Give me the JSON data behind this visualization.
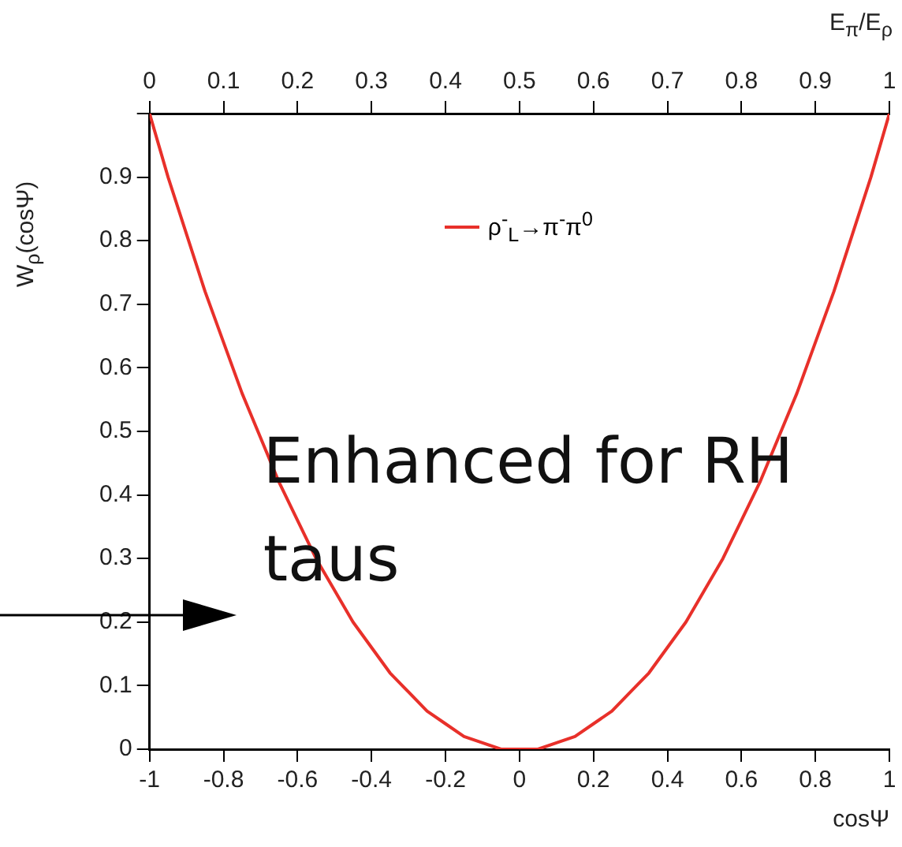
{
  "chart_data": {
    "type": "line",
    "xlabel": "cosΨ",
    "ylabel": "W$_{ρ}$(cosΨ)",
    "x2label": "E$_{π}$/E$_{ρ}$",
    "x": [
      -1,
      -0.95,
      -0.9,
      -0.85,
      -0.8,
      -0.75,
      -0.7,
      -0.65,
      -0.6,
      -0.55,
      -0.5,
      -0.45,
      -0.4,
      -0.35,
      -0.3,
      -0.25,
      -0.2,
      -0.15,
      -0.1,
      -0.05,
      0,
      0.05,
      0.1,
      0.15,
      0.2,
      0.25,
      0.3,
      0.35,
      0.4,
      0.45,
      0.5,
      0.55,
      0.6,
      0.65,
      0.7,
      0.75,
      0.8,
      0.85,
      0.9,
      0.95,
      1
    ],
    "series": [
      {
        "name": "ρ$^{-}$$_{L}$→π$^{-}$π$^{0}$",
        "color": "#e8302a",
        "values": [
          1,
          0.9,
          0.81,
          0.72,
          0.64,
          0.56,
          0.49,
          0.42,
          0.36,
          0.3,
          0.25,
          0.2,
          0.16,
          0.12,
          0.09,
          0.06,
          0.04,
          0.02,
          0.01,
          0,
          0,
          0,
          0.01,
          0.02,
          0.04,
          0.06,
          0.09,
          0.12,
          0.16,
          0.2,
          0.25,
          0.3,
          0.36,
          0.42,
          0.49,
          0.56,
          0.64,
          0.72,
          0.81,
          0.9,
          1
        ]
      }
    ],
    "xlim": [
      -1,
      1
    ],
    "xticks": [
      -1,
      -0.8,
      -0.6,
      -0.4,
      -0.2,
      0,
      0.2,
      0.4,
      0.6,
      0.8,
      1
    ],
    "ylim": [
      0,
      1
    ],
    "yticks": [
      0,
      0.1,
      0.2,
      0.3,
      0.4,
      0.5,
      0.6,
      0.7,
      0.8,
      0.9,
      {
        "value": 1,
        "label": null
      }
    ],
    "x2lim": [
      0,
      1
    ],
    "x2ticks": [
      0,
      0.1,
      0.2,
      0.3,
      0.4,
      0.5,
      0.6,
      0.7,
      0.8,
      0.9,
      1
    ],
    "legend": "top",
    "marker": "none",
    "line_style": "solid",
    "grid": false,
    "annotations": [
      "Enhanced for RH taus"
    ]
  }
}
